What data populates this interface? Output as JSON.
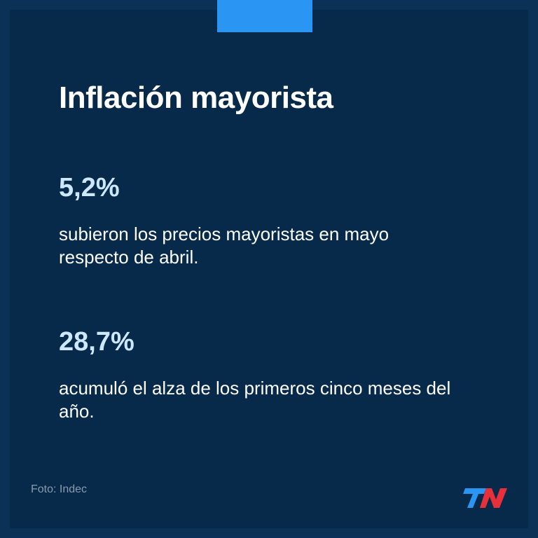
{
  "title": "Inflación mayorista",
  "stats": [
    {
      "value": "5,2%",
      "description": "subieron los precios mayoristas en mayo respecto de abril."
    },
    {
      "value": "28,7%",
      "description": "acumuló el alza de los primeros cinco meses del año."
    }
  ],
  "credit": "Foto: Indec",
  "brand": {
    "logo_text": "TN",
    "colors": {
      "t": "#2b95f4",
      "n": "#e8303a"
    }
  },
  "colors": {
    "background": "#07294a",
    "border": "#0b3157",
    "accent": "#2b95f4",
    "stat_value": "#cde7ff",
    "text": "#ffffff",
    "credit": "#8a9bb0"
  }
}
